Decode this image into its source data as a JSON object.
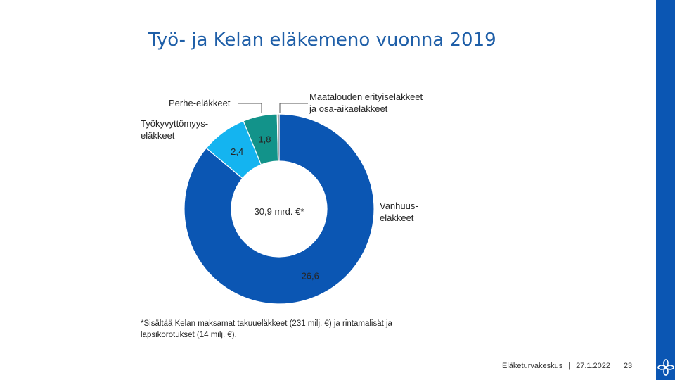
{
  "slide": {
    "title": "Työ- ja Kelan eläkemeno vuonna 2019",
    "footnote_line1": "*Sisältää Kelan maksamat takuueläkkeet (231 milj. €) ja rintamalisät ja",
    "footnote_line2": "lapsikorotukset (14 milj. €).",
    "footer_org": "Eläketurvakeskus",
    "footer_date": "27.1.2022",
    "footer_page": "23",
    "footer_separator": "|",
    "colors": {
      "accent": "#0b56b3",
      "title": "#1f5fa8"
    }
  },
  "chart_data": {
    "type": "pie",
    "donut": true,
    "title": "Työ- ja Kelan eläkemeno vuonna 2019",
    "center_label": "30,9 mrd. €*",
    "unit": "mrd. €",
    "total": 30.9,
    "slices": [
      {
        "name_lines": [
          "Vanhuus-",
          "eläkkeet"
        ],
        "value": 26.6,
        "value_label": "26,6",
        "color": "#0b56b3"
      },
      {
        "name_lines": [
          "Työkyvyttömyys-",
          "eläkkeet"
        ],
        "value": 2.4,
        "value_label": "2,4",
        "color": "#14b4f0"
      },
      {
        "name_lines": [
          "Perhe-eläkkeet"
        ],
        "value": 1.8,
        "value_label": "1,8",
        "color": "#12938a"
      },
      {
        "name_lines": [
          "Maatalouden erityiseläkkeet",
          "ja osa-aikaeläkkeet"
        ],
        "value": 0.1,
        "value_label": "",
        "color": "#1f2a2a"
      }
    ]
  }
}
